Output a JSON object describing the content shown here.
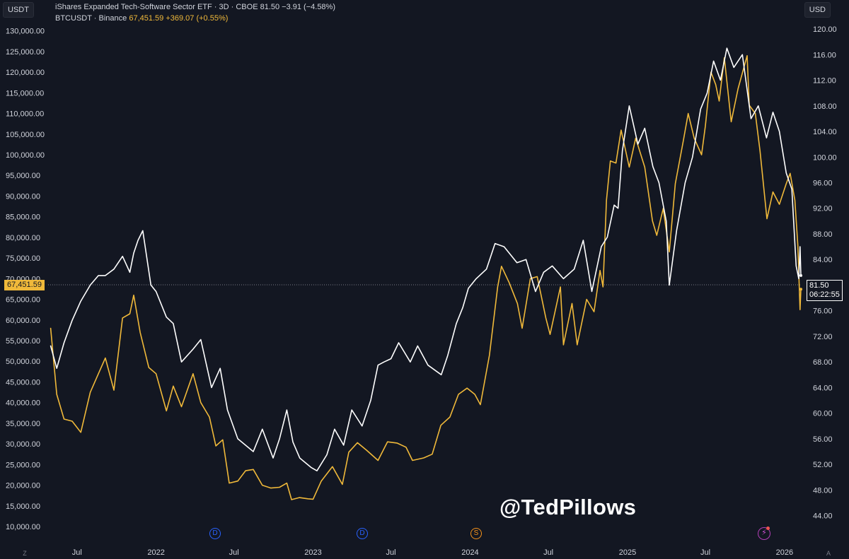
{
  "header": {
    "left_currency": "USDT",
    "right_currency": "USD",
    "legend_line1": "iShares Expanded Tech-Software Sector ETF · 3D · CBOE  81.50  −3.91 (−4.58%)",
    "legend_line2_label": "BTCUSDT · Binance",
    "legend_line2_value": "67,451.59  +369.07 (+0.55%)"
  },
  "watermark": "@TedPillows",
  "price_tags": {
    "left": "67,451.59",
    "right_price": "81.50",
    "right_countdown": "06:22:55"
  },
  "events": {
    "dividend_label": "D",
    "split_label": "S",
    "flash_label": "⚡"
  },
  "corner_buttons": {
    "left": "Z",
    "right": "A"
  },
  "colors": {
    "background": "#131722",
    "btc_line": "#f0b93a",
    "igv_line": "#ffffff",
    "axis_text": "#d1d4dc"
  },
  "chart_data": {
    "type": "line",
    "x_axis_labels": [
      "Jul",
      "2022",
      "Jul",
      "2023",
      "Jul",
      "2024",
      "Jul",
      "2025",
      "Jul",
      "2026"
    ],
    "x_axis_dates": [
      "2021-07-01",
      "2022-01-01",
      "2022-07-01",
      "2023-01-01",
      "2023-07-01",
      "2024-01-01",
      "2024-07-01",
      "2025-01-01",
      "2025-07-01",
      "2026-01-01"
    ],
    "x_range": [
      "2021-04-25",
      "2026-02-08"
    ],
    "left_axis": {
      "currency": "USDT",
      "range": [
        10000,
        132000
      ],
      "ticks": [
        10000,
        15000,
        20000,
        25000,
        30000,
        35000,
        40000,
        45000,
        50000,
        55000,
        60000,
        65000,
        70000,
        75000,
        80000,
        85000,
        90000,
        95000,
        100000,
        105000,
        110000,
        115000,
        120000,
        125000,
        130000
      ]
    },
    "right_axis": {
      "currency": "USD",
      "range": [
        42.3,
        121.0
      ],
      "ticks": [
        44,
        48,
        52,
        56,
        60,
        64,
        68,
        72,
        76,
        80,
        84,
        88,
        92,
        96,
        100,
        104,
        108,
        112,
        116,
        120
      ]
    },
    "grid": false,
    "series": [
      {
        "name": "BTCUSDT · Binance",
        "axis": "left",
        "color": "#f0b93a",
        "x": [
          "2021-05-01",
          "2021-05-15",
          "2021-06-01",
          "2021-06-20",
          "2021-07-10",
          "2021-08-01",
          "2021-08-20",
          "2021-09-05",
          "2021-09-25",
          "2021-10-15",
          "2021-11-01",
          "2021-11-10",
          "2021-11-25",
          "2021-12-15",
          "2022-01-01",
          "2022-01-25",
          "2022-02-10",
          "2022-03-01",
          "2022-03-28",
          "2022-04-15",
          "2022-05-05",
          "2022-05-20",
          "2022-06-05",
          "2022-06-20",
          "2022-07-10",
          "2022-07-28",
          "2022-08-15",
          "2022-09-05",
          "2022-09-25",
          "2022-10-15",
          "2022-11-01",
          "2022-11-12",
          "2022-11-30",
          "2022-12-20",
          "2023-01-01",
          "2023-01-20",
          "2023-02-15",
          "2023-03-10",
          "2023-03-25",
          "2023-04-14",
          "2023-05-05",
          "2023-06-01",
          "2023-06-23",
          "2023-07-15",
          "2023-08-05",
          "2023-08-20",
          "2023-09-15",
          "2023-10-05",
          "2023-10-25",
          "2023-11-15",
          "2023-12-05",
          "2023-12-25",
          "2024-01-12",
          "2024-01-25",
          "2024-02-15",
          "2024-03-05",
          "2024-03-14",
          "2024-04-01",
          "2024-04-20",
          "2024-05-01",
          "2024-05-20",
          "2024-06-05",
          "2024-06-25",
          "2024-07-05",
          "2024-07-29",
          "2024-08-05",
          "2024-08-25",
          "2024-09-06",
          "2024-09-28",
          "2024-10-15",
          "2024-10-29",
          "2024-11-05",
          "2024-11-13",
          "2024-11-22",
          "2024-12-05",
          "2024-12-17",
          "2025-01-05",
          "2025-01-20",
          "2025-02-10",
          "2025-02-28",
          "2025-03-10",
          "2025-03-25",
          "2025-04-08",
          "2025-04-22",
          "2025-05-10",
          "2025-05-22",
          "2025-06-05",
          "2025-06-22",
          "2025-07-01",
          "2025-07-14",
          "2025-07-25",
          "2025-08-02",
          "2025-08-14",
          "2025-08-30",
          "2025-09-15",
          "2025-10-06",
          "2025-10-11",
          "2025-10-25",
          "2025-11-05",
          "2025-11-21",
          "2025-12-05",
          "2025-12-20",
          "2026-01-05",
          "2026-01-14",
          "2026-01-25",
          "2026-02-01",
          "2026-02-06",
          "2026-02-08"
        ],
        "values": [
          58000,
          42000,
          36000,
          35500,
          32800,
          42500,
          47000,
          50800,
          43000,
          60500,
          61500,
          66000,
          57000,
          48500,
          47000,
          38000,
          44000,
          39000,
          47000,
          40000,
          36500,
          29500,
          31000,
          20500,
          21000,
          23500,
          23800,
          20000,
          19300,
          19500,
          20500,
          16500,
          17000,
          16700,
          16600,
          21000,
          24500,
          20200,
          28000,
          30300,
          28500,
          26000,
          30500,
          30200,
          29200,
          26000,
          26600,
          27500,
          34500,
          36500,
          42000,
          43500,
          42000,
          39500,
          51500,
          68000,
          73000,
          69000,
          64000,
          58000,
          70000,
          70500,
          60500,
          56500,
          68000,
          54000,
          64000,
          54000,
          65000,
          62000,
          72000,
          68000,
          89000,
          98500,
          98000,
          106000,
          97000,
          104000,
          97000,
          84000,
          80500,
          87000,
          76500,
          93000,
          103000,
          110000,
          104000,
          100000,
          107000,
          120000,
          117000,
          113000,
          123500,
          108000,
          116000,
          124000,
          112000,
          110000,
          101000,
          84500,
          91000,
          88000,
          93000,
          95500,
          89000,
          78000,
          62500,
          67451.59
        ]
      },
      {
        "name": "iShares Expanded Tech-Software Sector ETF",
        "axis": "right",
        "color": "#ffffff",
        "x": [
          "2021-05-01",
          "2021-05-15",
          "2021-06-01",
          "2021-06-20",
          "2021-07-10",
          "2021-08-01",
          "2021-08-20",
          "2021-09-05",
          "2021-09-25",
          "2021-10-15",
          "2021-11-01",
          "2021-11-10",
          "2021-11-20",
          "2021-12-01",
          "2021-12-20",
          "2022-01-01",
          "2022-01-25",
          "2022-02-10",
          "2022-03-01",
          "2022-03-28",
          "2022-04-15",
          "2022-05-10",
          "2022-05-30",
          "2022-06-16",
          "2022-07-10",
          "2022-08-15",
          "2022-09-05",
          "2022-09-30",
          "2022-10-15",
          "2022-11-01",
          "2022-11-15",
          "2022-12-01",
          "2022-12-28",
          "2023-01-10",
          "2023-02-02",
          "2023-02-20",
          "2023-03-13",
          "2023-04-01",
          "2023-04-25",
          "2023-05-15",
          "2023-06-01",
          "2023-06-15",
          "2023-07-01",
          "2023-07-19",
          "2023-08-15",
          "2023-09-01",
          "2023-09-25",
          "2023-10-26",
          "2023-11-10",
          "2023-11-30",
          "2023-12-15",
          "2023-12-28",
          "2024-01-15",
          "2024-02-08",
          "2024-02-28",
          "2024-03-20",
          "2024-04-19",
          "2024-05-10",
          "2024-06-01",
          "2024-06-20",
          "2024-07-10",
          "2024-08-05",
          "2024-08-30",
          "2024-09-20",
          "2024-10-10",
          "2024-11-01",
          "2024-11-15",
          "2024-12-01",
          "2024-12-10",
          "2024-12-20",
          "2025-01-05",
          "2025-01-25",
          "2025-02-10",
          "2025-03-01",
          "2025-03-15",
          "2025-04-01",
          "2025-04-08",
          "2025-04-25",
          "2025-05-15",
          "2025-06-01",
          "2025-06-20",
          "2025-07-05",
          "2025-07-20",
          "2025-08-05",
          "2025-08-20",
          "2025-09-05",
          "2025-09-25",
          "2025-10-15",
          "2025-11-01",
          "2025-11-20",
          "2025-12-05",
          "2025-12-20",
          "2026-01-05",
          "2026-01-18",
          "2026-01-28",
          "2026-02-03",
          "2026-02-06",
          "2026-02-08"
        ],
        "values": [
          70.5,
          67,
          71,
          74.5,
          77.5,
          80,
          81.5,
          81.5,
          82.5,
          84.5,
          82,
          85,
          87,
          88.5,
          80,
          79,
          75,
          74,
          68,
          70,
          71.5,
          64,
          67,
          60.5,
          56,
          54,
          57.5,
          53,
          56,
          60.5,
          55.5,
          53,
          51.5,
          51,
          53.5,
          57.5,
          55,
          60.5,
          58,
          62,
          67.5,
          68,
          68.5,
          71,
          68,
          70.5,
          67.5,
          66,
          69,
          74,
          76.5,
          79.5,
          81,
          82.5,
          86.5,
          86,
          83.5,
          84,
          79,
          82,
          83,
          81,
          82.5,
          87,
          79,
          86,
          87.5,
          92.5,
          92,
          101,
          108,
          102,
          104.5,
          98.5,
          96,
          90,
          80,
          88.5,
          96,
          100,
          107.5,
          110,
          115,
          112,
          117,
          114,
          116,
          106,
          108,
          103,
          107,
          104,
          97.5,
          95,
          83,
          81,
          86,
          81.5
        ]
      }
    ]
  }
}
